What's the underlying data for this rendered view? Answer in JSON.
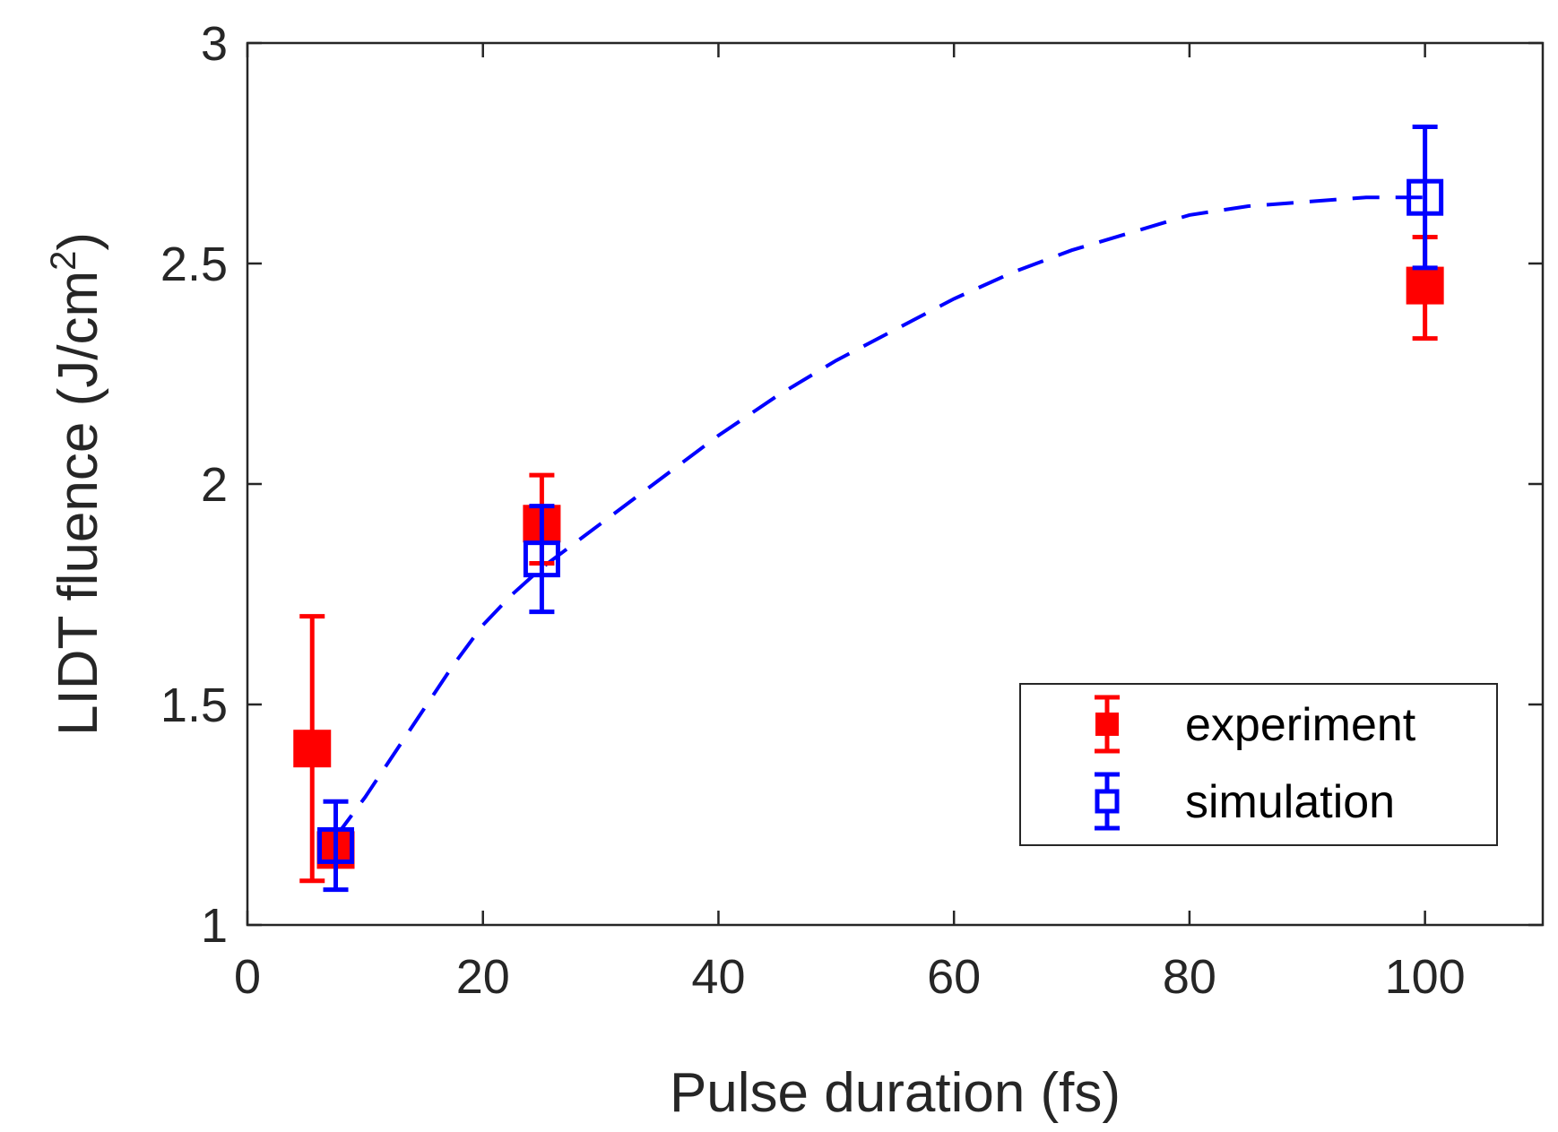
{
  "chart_data": {
    "type": "scatter",
    "xlabel": "Pulse duration (fs)",
    "ylabel_main": "LIDT fluence (J/cm",
    "ylabel_sup": "2",
    "ylabel_close": ")",
    "xlim": [
      0,
      110
    ],
    "ylim": [
      1,
      3
    ],
    "xticks": [
      0,
      20,
      40,
      60,
      80,
      100
    ],
    "yticks": [
      1,
      1.5,
      2,
      2.5,
      3
    ],
    "xtick_labels": [
      "0",
      "20",
      "40",
      "60",
      "80",
      "100"
    ],
    "ytick_labels": [
      "1",
      "1.5",
      "2",
      "2.5",
      "3"
    ],
    "series": [
      {
        "name": "experiment",
        "marker": "filled-square",
        "color": "#ff0000",
        "points": [
          {
            "x": 5.5,
            "y": 1.4,
            "lo": 1.1,
            "hi": 1.7
          },
          {
            "x": 7.5,
            "y": 1.17,
            "lo": 1.17,
            "hi": 1.17
          },
          {
            "x": 25,
            "y": 1.91,
            "lo": 1.82,
            "hi": 2.02
          },
          {
            "x": 100,
            "y": 2.45,
            "lo": 2.33,
            "hi": 2.56
          }
        ]
      },
      {
        "name": "simulation",
        "marker": "open-square",
        "color": "#0000ff",
        "points": [
          {
            "x": 7.5,
            "y": 1.18,
            "lo": 1.08,
            "hi": 1.28
          },
          {
            "x": 25,
            "y": 1.83,
            "lo": 1.71,
            "hi": 1.95
          },
          {
            "x": 100,
            "y": 2.65,
            "lo": 2.49,
            "hi": 2.81
          }
        ]
      }
    ],
    "fit_curve": {
      "name": "simulation fit",
      "style": "dashed",
      "color": "#0000ff",
      "x": [
        7.5,
        10,
        12.5,
        15,
        17.5,
        20,
        22.5,
        25,
        30,
        35,
        40,
        45,
        50,
        55,
        60,
        65,
        70,
        75,
        80,
        85,
        90,
        95,
        100
      ],
      "y": [
        1.2,
        1.29,
        1.39,
        1.49,
        1.59,
        1.68,
        1.75,
        1.81,
        1.91,
        2.01,
        2.11,
        2.2,
        2.28,
        2.35,
        2.42,
        2.48,
        2.53,
        2.57,
        2.61,
        2.63,
        2.64,
        2.65,
        2.65
      ]
    },
    "legend": {
      "position": "bottom-right",
      "entries": [
        "experiment",
        "simulation"
      ]
    }
  }
}
